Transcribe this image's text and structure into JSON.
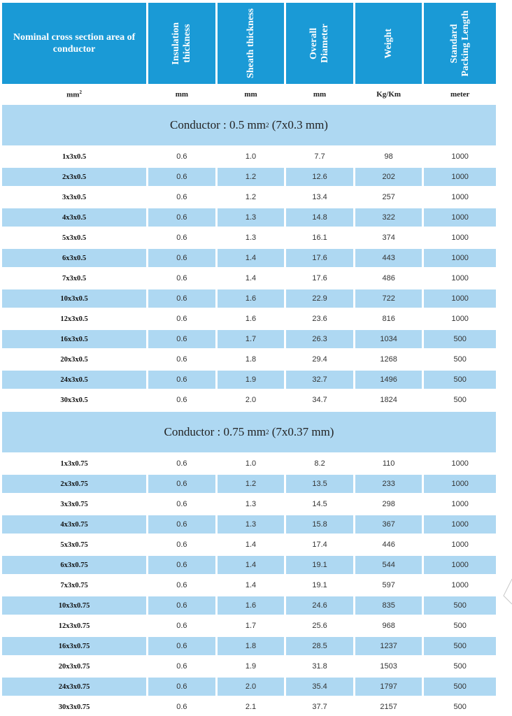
{
  "header": {
    "col0": "Nominal cross section area of conductor",
    "col1": "Insulation\nthickness",
    "col2": "Sheath thickness",
    "col3": "Overall\nDiameter",
    "col4": "Weight",
    "col5": "Standard\nPacking Length"
  },
  "units": {
    "col0": "mm",
    "col0_sup": "2",
    "col1": "mm",
    "col2": "mm",
    "col3": "mm",
    "col4": "Kg/Km",
    "col5": "meter"
  },
  "sections": [
    {
      "title_pre": "Conductor : 0.5 mm",
      "title_sup": "2",
      "title_post": " (7x0.3 mm)",
      "rows": [
        [
          "1x3x0.5",
          "0.6",
          "1.0",
          "7.7",
          "98",
          "1000"
        ],
        [
          "2x3x0.5",
          "0.6",
          "1.2",
          "12.6",
          "202",
          "1000"
        ],
        [
          "3x3x0.5",
          "0.6",
          "1.2",
          "13.4",
          "257",
          "1000"
        ],
        [
          "4x3x0.5",
          "0.6",
          "1.3",
          "14.8",
          "322",
          "1000"
        ],
        [
          "5x3x0.5",
          "0.6",
          "1.3",
          "16.1",
          "374",
          "1000"
        ],
        [
          "6x3x0.5",
          "0.6",
          "1.4",
          "17.6",
          "443",
          "1000"
        ],
        [
          "7x3x0.5",
          "0.6",
          "1.4",
          "17.6",
          "486",
          "1000"
        ],
        [
          "10x3x0.5",
          "0.6",
          "1.6",
          "22.9",
          "722",
          "1000"
        ],
        [
          "12x3x0.5",
          "0.6",
          "1.6",
          "23.6",
          "816",
          "1000"
        ],
        [
          "16x3x0.5",
          "0.6",
          "1.7",
          "26.3",
          "1034",
          "500"
        ],
        [
          "20x3x0.5",
          "0.6",
          "1.8",
          "29.4",
          "1268",
          "500"
        ],
        [
          "24x3x0.5",
          "0.6",
          "1.9",
          "32.7",
          "1496",
          "500"
        ],
        [
          "30x3x0.5",
          "0.6",
          "2.0",
          "34.7",
          "1824",
          "500"
        ]
      ]
    },
    {
      "title_pre": "Conductor : 0.75 mm",
      "title_sup": "2",
      "title_post": " (7x0.37 mm)",
      "rows": [
        [
          "1x3x0.75",
          "0.6",
          "1.0",
          "8.2",
          "110",
          "1000"
        ],
        [
          "2x3x0.75",
          "0.6",
          "1.2",
          "13.5",
          "233",
          "1000"
        ],
        [
          "3x3x0.75",
          "0.6",
          "1.3",
          "14.5",
          "298",
          "1000"
        ],
        [
          "4x3x0.75",
          "0.6",
          "1.3",
          "15.8",
          "367",
          "1000"
        ],
        [
          "5x3x0.75",
          "0.6",
          "1.4",
          "17.4",
          "446",
          "1000"
        ],
        [
          "6x3x0.75",
          "0.6",
          "1.4",
          "19.1",
          "544",
          "1000"
        ],
        [
          "7x3x0.75",
          "0.6",
          "1.4",
          "19.1",
          "597",
          "1000"
        ],
        [
          "10x3x0.75",
          "0.6",
          "1.6",
          "24.6",
          "835",
          "500"
        ],
        [
          "12x3x0.75",
          "0.6",
          "1.7",
          "25.6",
          "968",
          "500"
        ],
        [
          "16x3x0.75",
          "0.6",
          "1.8",
          "28.5",
          "1237",
          "500"
        ],
        [
          "20x3x0.75",
          "0.6",
          "1.9",
          "31.8",
          "1503",
          "500"
        ],
        [
          "24x3x0.75",
          "0.6",
          "2.0",
          "35.4",
          "1797",
          "500"
        ],
        [
          "30x3x0.75",
          "0.6",
          "2.1",
          "37.7",
          "2157",
          "500"
        ]
      ]
    }
  ],
  "colors": {
    "header_bg": "#1a9ad6",
    "row_alt_bg": "#aed8f2",
    "section_bg": "#aed8f2"
  }
}
